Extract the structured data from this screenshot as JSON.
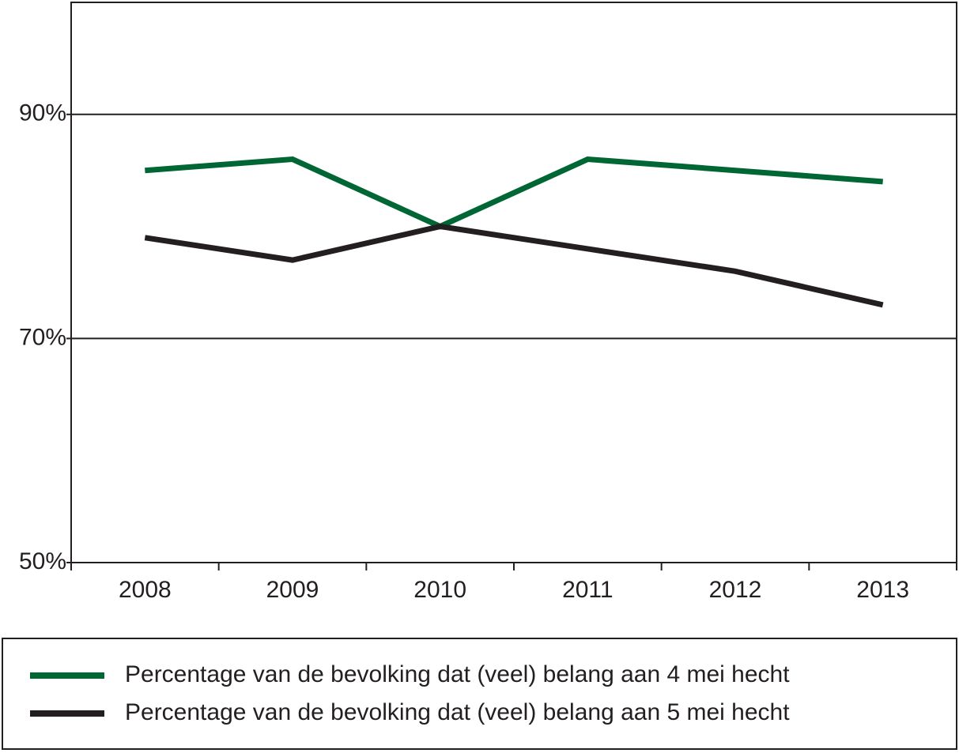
{
  "chart_data": {
    "type": "line",
    "categories": [
      "2008",
      "2009",
      "2010",
      "2011",
      "2012",
      "2013"
    ],
    "series": [
      {
        "name": "Percentage van de bevolking dat (veel) belang aan 4 mei hecht",
        "color": "#006633",
        "values": [
          85,
          86,
          80,
          86,
          85,
          84
        ]
      },
      {
        "name": "Percentage van de bevolking dat (veel) belang aan 5 mei hecht",
        "color": "#231f20",
        "values": [
          79,
          77,
          80,
          78,
          76,
          73
        ]
      }
    ],
    "ylim": [
      50,
      100
    ],
    "yticks": [
      {
        "value": 50,
        "label": "50%"
      },
      {
        "value": 70,
        "label": "70%"
      },
      {
        "value": 90,
        "label": "90%"
      }
    ],
    "grid": true
  }
}
